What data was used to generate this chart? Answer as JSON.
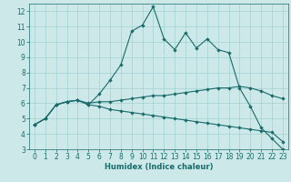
{
  "title": "",
  "xlabel": "Humidex (Indice chaleur)",
  "bg_color": "#cce8e8",
  "line_color": "#1a6b6b",
  "grid_color": "#99cccc",
  "spine_color": "#1a6b6b",
  "xlim": [
    -0.5,
    23.5
  ],
  "ylim": [
    3,
    12.5
  ],
  "xticks": [
    0,
    1,
    2,
    3,
    4,
    5,
    6,
    7,
    8,
    9,
    10,
    11,
    12,
    13,
    14,
    15,
    16,
    17,
    18,
    19,
    20,
    21,
    22,
    23
  ],
  "yticks": [
    3,
    4,
    5,
    6,
    7,
    8,
    9,
    10,
    11,
    12
  ],
  "line1_x": [
    0,
    1,
    2,
    3,
    4,
    5,
    6,
    7,
    8,
    9,
    10,
    11,
    12,
    13,
    14,
    15,
    16,
    17,
    18,
    19,
    20,
    21,
    22,
    23
  ],
  "line1_y": [
    4.6,
    5.0,
    5.9,
    6.1,
    6.2,
    5.9,
    6.6,
    7.5,
    8.5,
    10.7,
    11.1,
    12.3,
    10.2,
    9.5,
    10.6,
    9.6,
    10.2,
    9.5,
    9.3,
    7.0,
    5.8,
    4.4,
    3.7,
    3.0
  ],
  "line2_x": [
    0,
    1,
    2,
    3,
    4,
    5,
    6,
    7,
    8,
    9,
    10,
    11,
    12,
    13,
    14,
    15,
    16,
    17,
    18,
    19,
    20,
    21,
    22,
    23
  ],
  "line2_y": [
    4.6,
    5.0,
    5.9,
    6.1,
    6.2,
    6.0,
    6.1,
    6.1,
    6.2,
    6.3,
    6.4,
    6.5,
    6.5,
    6.6,
    6.7,
    6.8,
    6.9,
    7.0,
    7.0,
    7.1,
    7.0,
    6.8,
    6.5,
    6.3
  ],
  "line3_x": [
    0,
    1,
    2,
    3,
    4,
    5,
    6,
    7,
    8,
    9,
    10,
    11,
    12,
    13,
    14,
    15,
    16,
    17,
    18,
    19,
    20,
    21,
    22,
    23
  ],
  "line3_y": [
    4.6,
    5.0,
    5.9,
    6.1,
    6.2,
    5.9,
    5.8,
    5.6,
    5.5,
    5.4,
    5.3,
    5.2,
    5.1,
    5.0,
    4.9,
    4.8,
    4.7,
    4.6,
    4.5,
    4.4,
    4.3,
    4.2,
    4.1,
    3.5
  ],
  "fontsize_label": 6,
  "fontsize_tick": 5.5,
  "marker_size": 2.2,
  "linewidth": 0.8
}
